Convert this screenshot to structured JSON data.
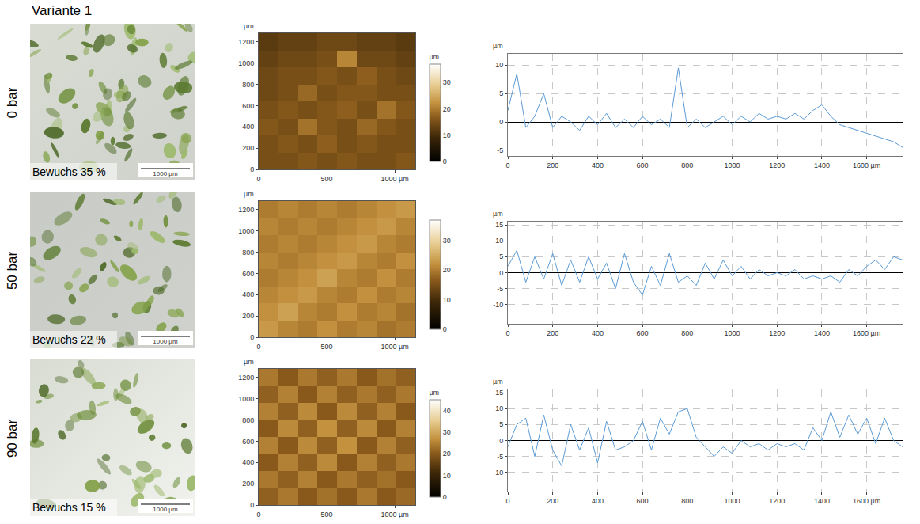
{
  "title": "Variante 1",
  "row_labels": [
    "0 bar",
    "50 bar",
    "90 bar"
  ],
  "photos": [
    {
      "caption": "Bewuchs 35 %",
      "scale_bar": "1000 µm"
    },
    {
      "caption": "Bewuchs 22 %",
      "scale_bar": "1000 µm"
    },
    {
      "caption": "Bewuchs 15 %",
      "scale_bar": "1000 µm"
    }
  ],
  "chart_data": [
    {
      "type": "heatmap",
      "x": [
        72,
        216,
        359,
        503,
        647,
        791,
        934,
        1078
      ],
      "y": [
        80,
        240,
        400,
        560,
        720,
        880,
        1040,
        1200
      ],
      "z": [
        [
          15,
          15,
          16,
          15,
          16,
          15,
          15,
          16
        ],
        [
          15,
          16,
          15,
          17,
          15,
          16,
          15,
          15
        ],
        [
          16,
          15,
          19,
          16,
          15,
          18,
          16,
          15
        ],
        [
          15,
          16,
          15,
          16,
          17,
          15,
          19,
          16
        ],
        [
          14,
          15,
          18,
          15,
          16,
          16,
          15,
          15
        ],
        [
          14,
          15,
          15,
          16,
          15,
          17,
          15,
          14
        ],
        [
          13,
          14,
          14,
          15,
          21,
          14,
          14,
          13
        ],
        [
          12,
          13,
          13,
          14,
          14,
          13,
          13,
          12
        ]
      ],
      "xlim": [
        0,
        1150
      ],
      "ylim": [
        0,
        1280
      ],
      "xticks": [
        0,
        500,
        {
          "value": 1000,
          "label": "1000 µm"
        }
      ],
      "yticks": [
        0,
        200,
        400,
        600,
        800,
        1000,
        1200
      ],
      "ylabel": "µm",
      "zlim": [
        0,
        37
      ],
      "zticks": [
        0,
        10,
        20,
        30
      ],
      "colorbar_title": "µm"
    },
    {
      "type": "line",
      "x": [
        0,
        40,
        80,
        120,
        160,
        200,
        240,
        280,
        320,
        360,
        400,
        440,
        480,
        520,
        560,
        600,
        640,
        680,
        720,
        760,
        800,
        840,
        880,
        920,
        960,
        1000,
        1040,
        1080,
        1120,
        1160,
        1200,
        1240,
        1280,
        1320,
        1360,
        1400,
        1440,
        1480,
        1520,
        1560,
        1600,
        1640,
        1680,
        1720,
        1760
      ],
      "values": [
        2,
        8.5,
        -1,
        1,
        5,
        -1,
        1,
        0,
        -1.5,
        1,
        -0.5,
        1.5,
        -1,
        0.5,
        -1,
        1,
        -0.5,
        0.5,
        -1,
        9.5,
        -1,
        0.5,
        -1,
        0,
        1,
        -0.5,
        1,
        0,
        1.5,
        0.5,
        1,
        0.5,
        1.5,
        0.5,
        2,
        3,
        1,
        -0.5,
        -1,
        -1.5,
        -2,
        -2.5,
        -3,
        -3.5,
        -4.5
      ],
      "xlim": [
        0,
        1760
      ],
      "ylim": [
        -6,
        12
      ],
      "xticks": [
        0,
        200,
        400,
        600,
        800,
        1000,
        1200,
        1400,
        {
          "value": 1600,
          "label": "1600 µm"
        }
      ],
      "yticks": [
        -5,
        0,
        5,
        10
      ],
      "ylabel": "µm",
      "color": "#5b9bd5",
      "grid": true
    },
    {
      "type": "heatmap",
      "x": [
        72,
        216,
        359,
        503,
        647,
        791,
        934,
        1078
      ],
      "y": [
        80,
        240,
        400,
        560,
        720,
        880,
        1040,
        1200
      ],
      "z": [
        [
          23,
          21,
          20,
          22,
          20,
          21,
          19,
          20
        ],
        [
          22,
          24,
          21,
          20,
          22,
          20,
          21,
          19
        ],
        [
          21,
          22,
          23,
          21,
          20,
          22,
          20,
          21
        ],
        [
          20,
          21,
          22,
          24,
          21,
          20,
          22,
          20
        ],
        [
          21,
          20,
          21,
          22,
          23,
          21,
          20,
          22
        ],
        [
          20,
          21,
          20,
          21,
          22,
          23,
          21,
          20
        ],
        [
          21,
          20,
          21,
          20,
          21,
          22,
          23,
          21
        ],
        [
          20,
          21,
          20,
          21,
          20,
          21,
          22,
          23
        ]
      ],
      "xlim": [
        0,
        1150
      ],
      "ylim": [
        0,
        1280
      ],
      "xticks": [
        0,
        500,
        {
          "value": 1000,
          "label": "1000 µm"
        }
      ],
      "yticks": [
        0,
        200,
        400,
        600,
        800,
        1000,
        1200
      ],
      "ylabel": "µm",
      "zlim": [
        0,
        37
      ],
      "zticks": [
        0,
        10,
        20,
        30
      ]
    },
    {
      "type": "line",
      "x": [
        0,
        40,
        80,
        120,
        160,
        200,
        240,
        280,
        320,
        360,
        400,
        440,
        480,
        520,
        560,
        600,
        640,
        680,
        720,
        760,
        800,
        840,
        880,
        920,
        960,
        1000,
        1040,
        1080,
        1120,
        1160,
        1200,
        1240,
        1280,
        1320,
        1360,
        1400,
        1440,
        1480,
        1520,
        1560,
        1600,
        1640,
        1680,
        1720,
        1760
      ],
      "values": [
        2,
        7,
        -3,
        5,
        -2,
        6,
        -4,
        4,
        -3,
        5,
        -2,
        3,
        -5,
        6,
        -3,
        -7,
        2,
        -4,
        6,
        -3,
        -1,
        -4,
        3,
        -2,
        4,
        -1,
        2,
        -2,
        1,
        -1,
        0,
        -1,
        1,
        -2,
        -1,
        -2,
        -1,
        -3,
        1,
        -1,
        2,
        4,
        1,
        5,
        4
      ],
      "xlim": [
        0,
        1760
      ],
      "ylim": [
        -16,
        16
      ],
      "xticks": [
        0,
        200,
        400,
        600,
        800,
        1000,
        1200,
        1400,
        {
          "value": 1600,
          "label": "1600 µm"
        }
      ],
      "yticks": [
        -10,
        -5,
        0,
        5,
        10,
        15
      ],
      "ylabel": "µm",
      "color": "#5b9bd5",
      "grid": true
    },
    {
      "type": "heatmap",
      "x": [
        72,
        216,
        359,
        503,
        647,
        791,
        934,
        1078
      ],
      "y": [
        80,
        240,
        400,
        560,
        720,
        880,
        1040,
        1200
      ],
      "z": [
        [
          21,
          24,
          20,
          23,
          20,
          24,
          20,
          22
        ],
        [
          24,
          21,
          25,
          20,
          24,
          21,
          23,
          20
        ],
        [
          20,
          25,
          21,
          26,
          20,
          25,
          21,
          24
        ],
        [
          25,
          20,
          26,
          21,
          27,
          20,
          25,
          21
        ],
        [
          20,
          26,
          21,
          27,
          21,
          26,
          20,
          25
        ],
        [
          25,
          21,
          26,
          20,
          26,
          21,
          25,
          20
        ],
        [
          21,
          25,
          20,
          25,
          21,
          24,
          21,
          24
        ],
        [
          24,
          20,
          24,
          21,
          24,
          20,
          23,
          21
        ]
      ],
      "xlim": [
        0,
        1150
      ],
      "ylim": [
        0,
        1280
      ],
      "xticks": [
        0,
        500,
        {
          "value": 1000,
          "label": "1000 µm"
        }
      ],
      "yticks": [
        0,
        200,
        400,
        600,
        800,
        1000,
        1200
      ],
      "ylabel": "µm",
      "zlim": [
        0,
        45
      ],
      "zticks": [
        0,
        10,
        20,
        30,
        40
      ],
      "colorbar_title": "µm"
    },
    {
      "type": "line",
      "x": [
        0,
        40,
        80,
        120,
        160,
        200,
        240,
        280,
        320,
        360,
        400,
        440,
        480,
        520,
        560,
        600,
        640,
        680,
        720,
        760,
        800,
        840,
        880,
        920,
        960,
        1000,
        1040,
        1080,
        1120,
        1160,
        1200,
        1240,
        1280,
        1320,
        1360,
        1400,
        1440,
        1480,
        1520,
        1560,
        1600,
        1640,
        1680,
        1720,
        1760
      ],
      "values": [
        -2,
        5,
        7,
        -5,
        8,
        -3,
        -8,
        5,
        -3,
        4,
        -7,
        6,
        -3,
        -2,
        0,
        6,
        -3,
        7,
        2,
        9,
        10,
        1,
        -2,
        -5,
        -2,
        -4,
        0,
        -2,
        -1,
        -3,
        -1,
        -2,
        -1,
        -3,
        4,
        0,
        9,
        1,
        8,
        2,
        7,
        -1,
        7,
        0,
        -2
      ],
      "xlim": [
        0,
        1760
      ],
      "ylim": [
        -16,
        16
      ],
      "xticks": [
        0,
        200,
        400,
        600,
        800,
        1000,
        1200,
        1400,
        {
          "value": 1600,
          "label": "1600 µm"
        }
      ],
      "yticks": [
        -10,
        -5,
        0,
        5,
        10,
        15
      ],
      "ylabel": "µm",
      "color": "#5b9bd5",
      "grid": true
    }
  ]
}
